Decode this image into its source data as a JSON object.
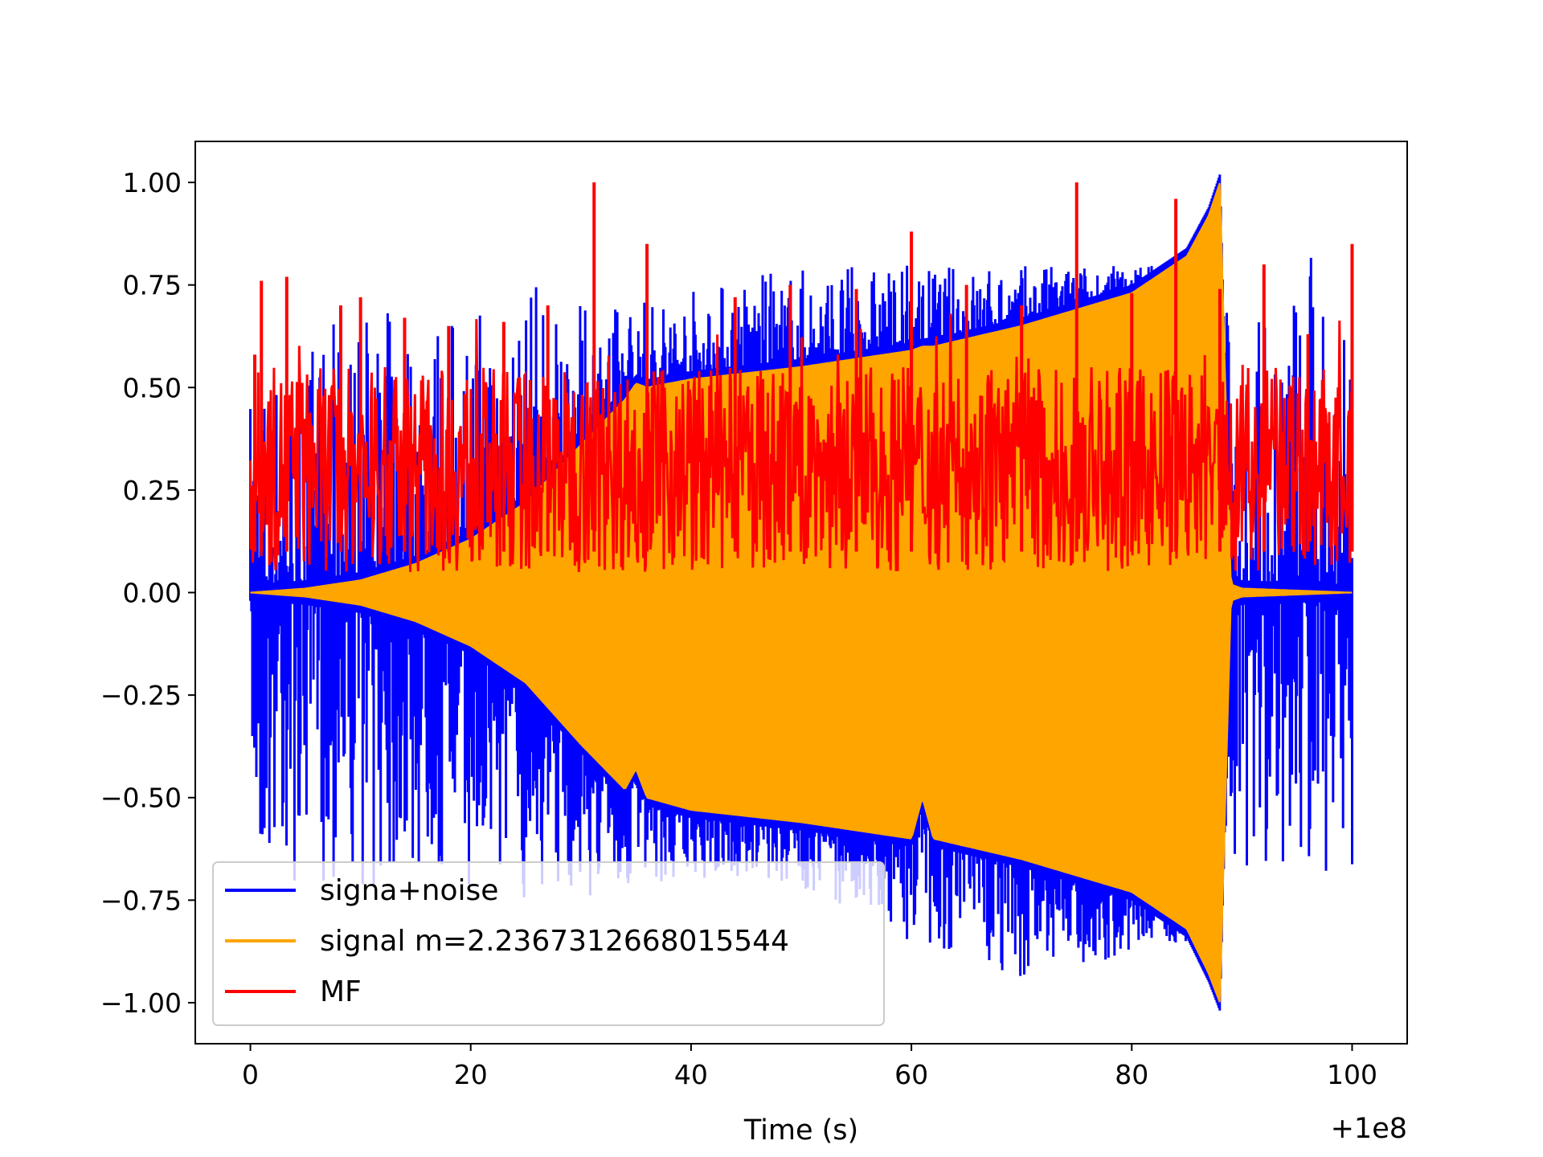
{
  "chart_data": {
    "type": "line",
    "title": "",
    "xlabel": "Time (s)",
    "ylabel": "",
    "x_offset_label": "+1e8",
    "xlim": [
      -5,
      105
    ],
    "ylim": [
      -1.1,
      1.1
    ],
    "x_ticks": [
      0,
      20,
      40,
      60,
      80,
      100
    ],
    "x_tick_labels": [
      "0",
      "20",
      "40",
      "60",
      "80",
      "100"
    ],
    "y_ticks": [
      1.0,
      0.75,
      0.5,
      0.25,
      0.0,
      -0.25,
      -0.5,
      -0.75,
      -1.0
    ],
    "y_tick_labels": [
      "1.00",
      "0.75",
      "0.50",
      "0.25",
      "0.00",
      "−0.25",
      "−0.50",
      "−0.75",
      "−1.00"
    ],
    "grid": false,
    "legend_position": "lower-left",
    "series": [
      {
        "name": "signa+noise",
        "color": "#0000ff",
        "description_points": {
          "x": [
            0,
            10,
            20,
            25,
            28,
            32,
            40,
            50,
            60,
            70,
            80,
            85,
            87.5,
            88.5,
            90,
            100
          ],
          "upper_peak": [
            0.55,
            0.7,
            0.7,
            0.8,
            0.7,
            0.7,
            0.75,
            0.8,
            0.8,
            0.8,
            0.8,
            0.8,
            0.82,
            0.7,
            0.7,
            0.91
          ],
          "lower_envelope": [
            -0.7,
            -0.72,
            -0.72,
            -0.75,
            -0.72,
            -0.75,
            -0.7,
            -0.72,
            -0.85,
            -0.95,
            -0.88,
            -0.85,
            -0.7,
            -0.6,
            -0.7,
            -0.7
          ]
        }
      },
      {
        "name": "signal m=2.2367312668015544",
        "color": "#ffa500",
        "envelope": {
          "x": [
            0,
            5,
            10,
            15,
            20,
            25,
            30,
            34,
            35,
            36,
            40,
            50,
            60,
            61,
            62,
            70,
            80,
            85,
            87,
            88,
            89,
            90,
            100
          ],
          "upper": [
            0.0,
            0.01,
            0.03,
            0.07,
            0.13,
            0.22,
            0.36,
            0.47,
            0.51,
            0.5,
            0.52,
            0.55,
            0.59,
            0.6,
            0.6,
            0.65,
            0.73,
            0.82,
            0.92,
            1.0,
            0.02,
            0.01,
            0.0
          ],
          "lower": [
            0.0,
            -0.01,
            -0.03,
            -0.07,
            -0.13,
            -0.22,
            -0.37,
            -0.48,
            -0.43,
            -0.5,
            -0.53,
            -0.56,
            -0.6,
            -0.5,
            -0.6,
            -0.65,
            -0.73,
            -0.82,
            -0.93,
            -1.0,
            -0.02,
            -0.01,
            0.0
          ]
        }
      },
      {
        "name": "MF",
        "color": "#ff0000",
        "peaks": {
          "x": [
            0.4,
            1.0,
            3.3,
            8.2,
            10.0,
            14.0,
            18.0,
            23.0,
            27.0,
            31.2,
            36.0,
            44.0,
            49.0,
            55.0,
            60.0,
            65.0,
            70.0,
            75.0,
            80.0,
            84.0,
            88.0,
            92.0,
            96.0,
            100.0
          ],
          "y": [
            0.58,
            0.76,
            0.77,
            0.7,
            0.72,
            0.67,
            0.65,
            0.66,
            0.7,
            1.0,
            0.85,
            0.72,
            0.75,
            0.74,
            0.88,
            0.75,
            0.7,
            1.0,
            0.73,
            0.96,
            0.74,
            0.8,
            0.63,
            0.85
          ],
          "typical_range": [
            0.05,
            0.55
          ]
        }
      }
    ]
  }
}
